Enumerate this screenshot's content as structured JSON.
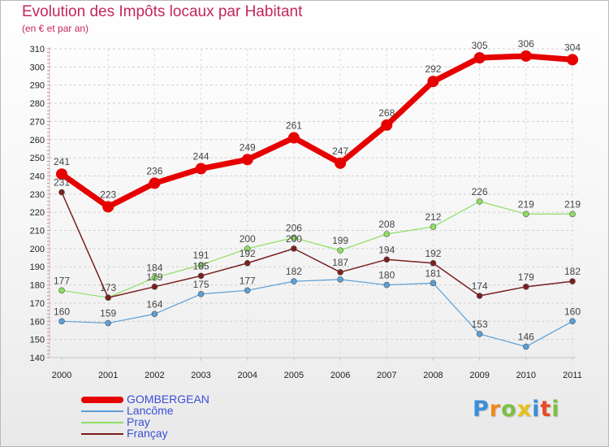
{
  "title": "Evolution des Impôts locaux par Habitant",
  "subtitle": "(en € et par an)",
  "logo_text": "Proxiti",
  "chart_data": {
    "type": "line",
    "title": "Evolution des Impôts locaux par Habitant",
    "subtitle": "(en € et par an)",
    "xlabel": "",
    "ylabel": "",
    "categories": [
      "2000",
      "2001",
      "2002",
      "2003",
      "2004",
      "2005",
      "2006",
      "2007",
      "2008",
      "2009",
      "2010",
      "2011"
    ],
    "ylim": [
      140,
      310
    ],
    "yticks": [
      140,
      150,
      160,
      170,
      180,
      190,
      200,
      210,
      220,
      230,
      240,
      250,
      260,
      270,
      280,
      290,
      300,
      310
    ],
    "series": [
      {
        "name": "GOMBERGEAN",
        "color": "#e60000",
        "values": [
          241,
          223,
          236,
          244,
          249,
          261,
          247,
          268,
          292,
          305,
          306,
          304
        ]
      },
      {
        "name": "Lancôme",
        "color": "#5b9fd6",
        "values": [
          160,
          159,
          164,
          175,
          177,
          182,
          183,
          180,
          181,
          153,
          146,
          160
        ]
      },
      {
        "name": "Pray",
        "color": "#8ede62",
        "values": [
          177,
          173,
          184,
          191,
          200,
          206,
          199,
          208,
          212,
          226,
          219,
          219
        ]
      },
      {
        "name": "Françay",
        "color": "#7a1f1f",
        "values": [
          231,
          173,
          179,
          185,
          192,
          200,
          187,
          194,
          192,
          174,
          179,
          182
        ]
      }
    ],
    "data_labels": {
      "GOMBERGEAN": [
        "241",
        "223",
        "236",
        "244",
        "249",
        "261",
        "247",
        "268",
        "292",
        "305",
        "306",
        "304"
      ],
      "Lancôme": [
        "160",
        "159",
        "164",
        "175",
        "177",
        "182",
        "",
        "180",
        "181",
        "153",
        "146",
        "160"
      ],
      "Pray": [
        "177",
        "",
        "184",
        "191",
        "200",
        "206",
        "199",
        "208",
        "212",
        "226",
        "219",
        "219"
      ],
      "Françay": [
        "231",
        "173",
        "179",
        "185",
        "192",
        "200",
        "187",
        "194",
        "192",
        "174",
        "179",
        "182"
      ]
    },
    "legend_position": "bottom-left"
  }
}
